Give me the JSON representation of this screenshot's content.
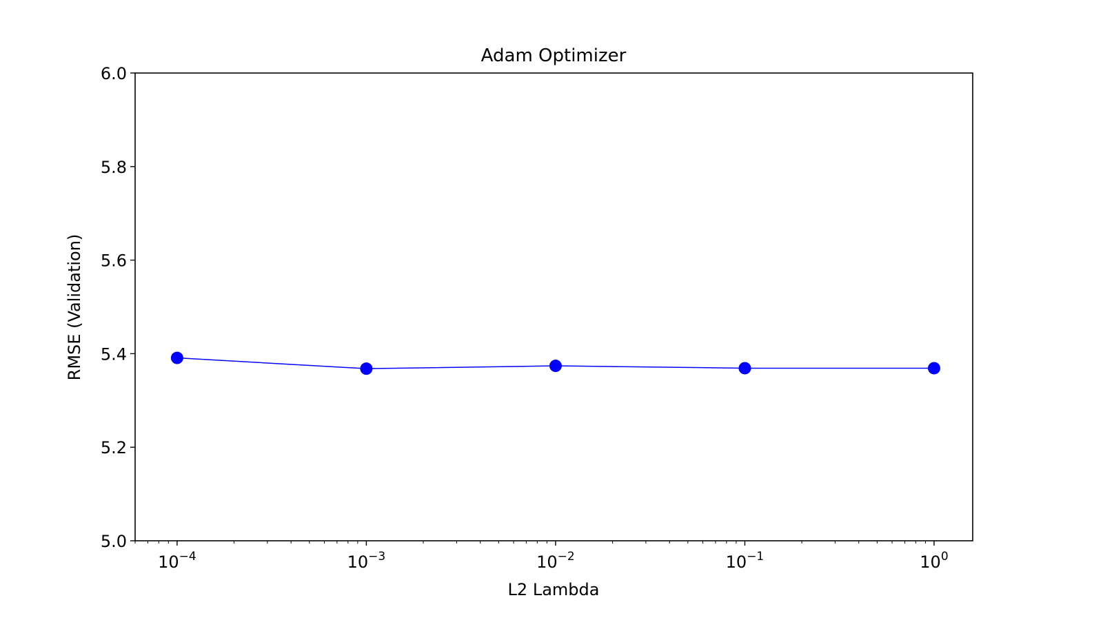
{
  "chart_data": {
    "type": "line",
    "title": "Adam Optimizer",
    "xlabel": "L2 Lambda",
    "ylabel": "RMSE (Validation)",
    "xscale": "log",
    "x": [
      0.0001,
      0.001,
      0.01,
      0.1,
      1
    ],
    "xlim": [
      6e-05,
      1.6
    ],
    "ylim": [
      5.0,
      6.0
    ],
    "yticks": [
      "5.0",
      "5.2",
      "5.4",
      "5.6",
      "5.8",
      "6.0"
    ],
    "xticks": [
      {
        "base": "10",
        "exp": "−4"
      },
      {
        "base": "10",
        "exp": "−3"
      },
      {
        "base": "10",
        "exp": "−2"
      },
      {
        "base": "10",
        "exp": "−1"
      },
      {
        "base": "10",
        "exp": "0"
      }
    ],
    "series": [
      {
        "values": [
          5.391,
          5.368,
          5.374,
          5.369,
          5.369
        ],
        "color": "#0000ff",
        "marker": "circle"
      }
    ],
    "grid": false,
    "legend": "none"
  }
}
